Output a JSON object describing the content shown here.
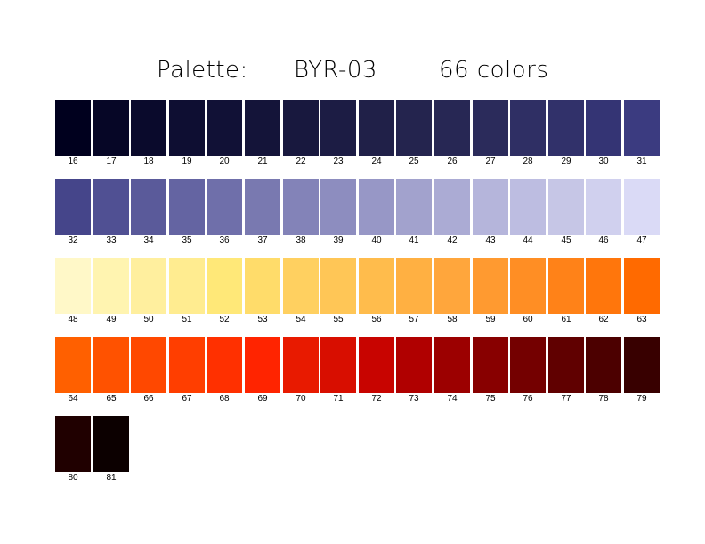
{
  "title": {
    "prefix": "Palette:",
    "name": "BYR-03",
    "count_text": "66 colors"
  },
  "chart_data": {
    "type": "palette-swatches",
    "palette_name": "BYR-03",
    "color_count": 66,
    "columns": 16,
    "swatches": [
      {
        "index": 16,
        "color": "#00001e"
      },
      {
        "index": 17,
        "color": "#060626"
      },
      {
        "index": 18,
        "color": "#0a0a2c"
      },
      {
        "index": 19,
        "color": "#0e0e32"
      },
      {
        "index": 20,
        "color": "#111136"
      },
      {
        "index": 21,
        "color": "#141439"
      },
      {
        "index": 22,
        "color": "#18183e"
      },
      {
        "index": 23,
        "color": "#1c1c44"
      },
      {
        "index": 24,
        "color": "#202048"
      },
      {
        "index": 25,
        "color": "#24244e"
      },
      {
        "index": 26,
        "color": "#272754"
      },
      {
        "index": 27,
        "color": "#2b2b5b"
      },
      {
        "index": 28,
        "color": "#2f2f64"
      },
      {
        "index": 29,
        "color": "#31316a"
      },
      {
        "index": 30,
        "color": "#343474"
      },
      {
        "index": 31,
        "color": "#3b3b80"
      },
      {
        "index": 32,
        "color": "#45458a"
      },
      {
        "index": 33,
        "color": "#505093"
      },
      {
        "index": 34,
        "color": "#5a5a9a"
      },
      {
        "index": 35,
        "color": "#6464a2"
      },
      {
        "index": 36,
        "color": "#6f6faa"
      },
      {
        "index": 37,
        "color": "#7979b0"
      },
      {
        "index": 38,
        "color": "#8383b8"
      },
      {
        "index": 39,
        "color": "#8d8dbf"
      },
      {
        "index": 40,
        "color": "#9797c6"
      },
      {
        "index": 41,
        "color": "#a2a2cd"
      },
      {
        "index": 42,
        "color": "#ababd4"
      },
      {
        "index": 43,
        "color": "#b5b5db"
      },
      {
        "index": 44,
        "color": "#bdbde1"
      },
      {
        "index": 45,
        "color": "#c6c6e6"
      },
      {
        "index": 46,
        "color": "#d0d0ee"
      },
      {
        "index": 47,
        "color": "#dadaf6"
      },
      {
        "index": 48,
        "color": "#fff8c8"
      },
      {
        "index": 49,
        "color": "#fff4b0"
      },
      {
        "index": 50,
        "color": "#ffef9e"
      },
      {
        "index": 51,
        "color": "#ffec90"
      },
      {
        "index": 52,
        "color": "#ffe878"
      },
      {
        "index": 53,
        "color": "#ffdc6a"
      },
      {
        "index": 54,
        "color": "#ffd060"
      },
      {
        "index": 55,
        "color": "#ffc656"
      },
      {
        "index": 56,
        "color": "#ffbc4c"
      },
      {
        "index": 57,
        "color": "#ffb042"
      },
      {
        "index": 58,
        "color": "#ffa63c"
      },
      {
        "index": 59,
        "color": "#ff9a30"
      },
      {
        "index": 60,
        "color": "#ff8e24"
      },
      {
        "index": 61,
        "color": "#ff8218"
      },
      {
        "index": 62,
        "color": "#ff760c"
      },
      {
        "index": 63,
        "color": "#ff6a00"
      },
      {
        "index": 64,
        "color": "#ff6000"
      },
      {
        "index": 65,
        "color": "#ff5200"
      },
      {
        "index": 66,
        "color": "#ff4800"
      },
      {
        "index": 67,
        "color": "#ff3e00"
      },
      {
        "index": 68,
        "color": "#ff3000"
      },
      {
        "index": 69,
        "color": "#ff2400"
      },
      {
        "index": 70,
        "color": "#e81a00"
      },
      {
        "index": 71,
        "color": "#d80e00"
      },
      {
        "index": 72,
        "color": "#c80400"
      },
      {
        "index": 73,
        "color": "#b00000"
      },
      {
        "index": 74,
        "color": "#9c0000"
      },
      {
        "index": 75,
        "color": "#880000"
      },
      {
        "index": 76,
        "color": "#740000"
      },
      {
        "index": 77,
        "color": "#600000"
      },
      {
        "index": 78,
        "color": "#4c0000"
      },
      {
        "index": 79,
        "color": "#380000"
      },
      {
        "index": 80,
        "color": "#200000"
      },
      {
        "index": 81,
        "color": "#0c0000"
      }
    ]
  }
}
